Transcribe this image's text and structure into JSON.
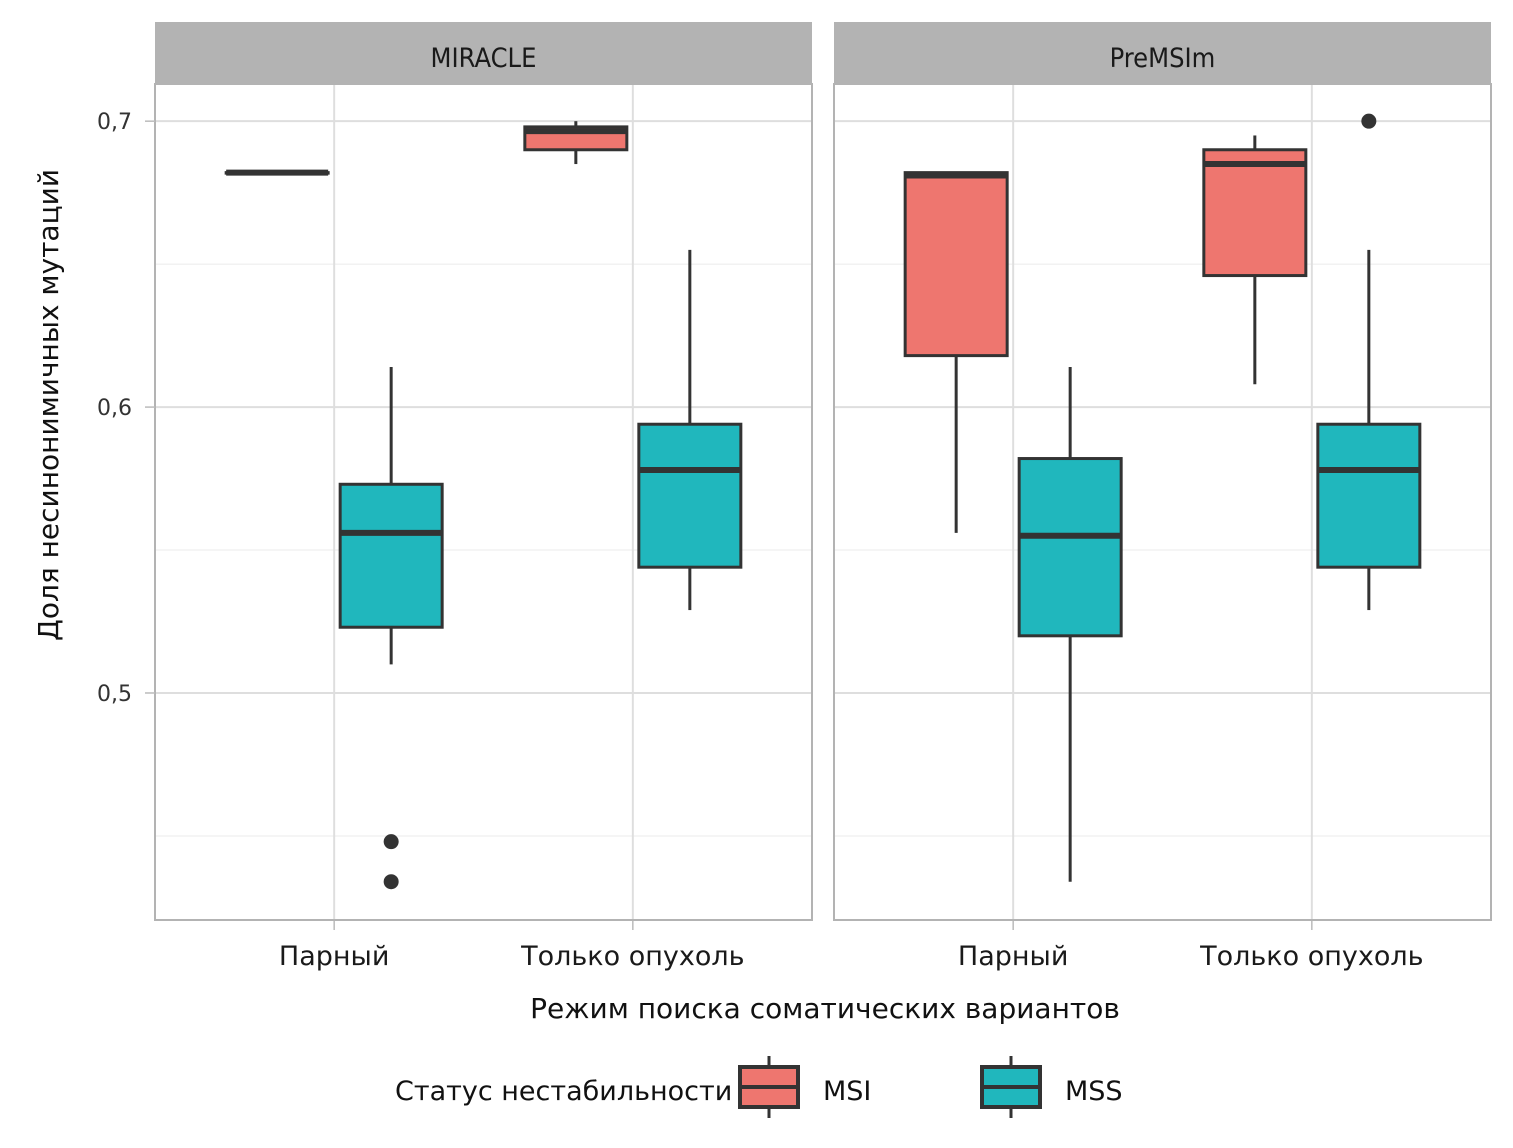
{
  "chart_data": {
    "type": "boxplot",
    "title": "",
    "xlabel": "Режим поиска соматических вариантов",
    "ylabel": "Доля несинонимичных мутаций",
    "ylim": [
      0.4206,
      0.713
    ],
    "y_major_ticks": [
      0.5,
      0.6,
      0.7
    ],
    "y_tick_labels": [
      "0,5",
      "0,6",
      "0,7"
    ],
    "y_minor_ticks": [
      0.45,
      0.55,
      0.65
    ],
    "grid": true,
    "categories": [
      "Парный",
      "Только опухоль"
    ],
    "legend": {
      "title": "Статус нестабильности",
      "placement": "bottom",
      "entries": [
        {
          "name": "MSI",
          "color": "#EE766F"
        },
        {
          "name": "MSS",
          "color": "#20B7BD"
        }
      ]
    },
    "colors": {
      "MSI": "#EE766F",
      "MSS": "#20B7BD",
      "outline": "#333333",
      "strip_bg": "#B3B3B3",
      "grid": "#DEDEDE",
      "panel_border": "#B3B3B3"
    },
    "panels": [
      {
        "name": "MIRACLE",
        "groups": [
          {
            "category": "Парный",
            "status": "MSI",
            "whisker_low": 0.682,
            "q1": 0.682,
            "median": 0.682,
            "q3": 0.682,
            "whisker_high": 0.682,
            "outliers": []
          },
          {
            "category": "Парный",
            "status": "MSS",
            "whisker_low": 0.51,
            "q1": 0.523,
            "median": 0.556,
            "q3": 0.573,
            "whisker_high": 0.614,
            "outliers": [
              0.448,
              0.434
            ]
          },
          {
            "category": "Только опухоль",
            "status": "MSI",
            "whisker_low": 0.685,
            "q1": 0.69,
            "median": 0.6965,
            "q3": 0.698,
            "whisker_high": 0.7,
            "outliers": []
          },
          {
            "category": "Только опухоль",
            "status": "MSS",
            "whisker_low": 0.529,
            "q1": 0.544,
            "median": 0.578,
            "q3": 0.594,
            "whisker_high": 0.655,
            "outliers": []
          }
        ]
      },
      {
        "name": "PreMSIm",
        "groups": [
          {
            "category": "Парный",
            "status": "MSI",
            "whisker_low": 0.556,
            "q1": 0.618,
            "median": 0.681,
            "q3": 0.682,
            "whisker_high": 0.682,
            "outliers": []
          },
          {
            "category": "Парный",
            "status": "MSS",
            "whisker_low": 0.434,
            "q1": 0.52,
            "median": 0.555,
            "q3": 0.582,
            "whisker_high": 0.614,
            "outliers": []
          },
          {
            "category": "Только опухоль",
            "status": "MSI",
            "whisker_low": 0.608,
            "q1": 0.646,
            "median": 0.685,
            "q3": 0.69,
            "whisker_high": 0.695,
            "outliers": []
          },
          {
            "category": "Только опухоль",
            "status": "MSS",
            "whisker_low": 0.529,
            "q1": 0.544,
            "median": 0.578,
            "q3": 0.594,
            "whisker_high": 0.655,
            "outliers": [
              0.7
            ]
          }
        ]
      }
    ]
  }
}
